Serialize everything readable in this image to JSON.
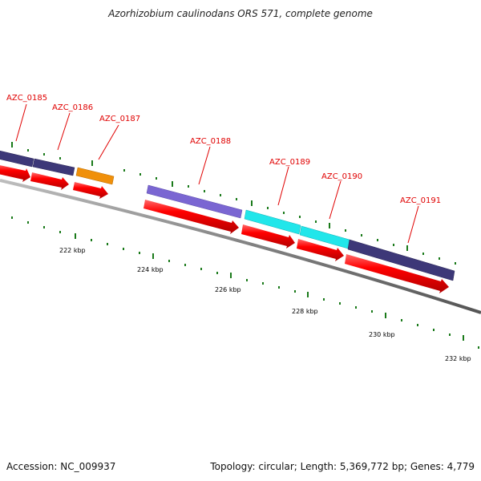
{
  "title": "Azorhizobium caulinodans ORS 571, complete genome",
  "footer": {
    "accession": "Accession: NC_009937",
    "topology": "Topology: circular",
    "length": "Length: 5,369,772 bp",
    "genes": "Genes: 4,779",
    "separator": "; "
  },
  "genes": [
    {
      "id": "AZC_0185",
      "color": "#3d3878"
    },
    {
      "id": "AZC_0186",
      "color": "#3d3878"
    },
    {
      "id": "AZC_0187",
      "color": "#f0900a"
    },
    {
      "id": "AZC_0188",
      "color": "#7a66d2"
    },
    {
      "id": "AZC_0189",
      "color": "#21e6ea"
    },
    {
      "id": "AZC_0190",
      "color": "#21e6ea"
    },
    {
      "id": "AZC_0191",
      "color": "#3d3878"
    }
  ],
  "scale": {
    "labels": [
      "222 kbp",
      "224 kbp",
      "226 kbp",
      "228 kbp",
      "230 kbp",
      "232 kbp"
    ]
  },
  "colors": {
    "backbone": "#7a7a7a",
    "cds_arrow": "#ee0000",
    "tick": "#1a7a1a",
    "label": "#e00000"
  }
}
